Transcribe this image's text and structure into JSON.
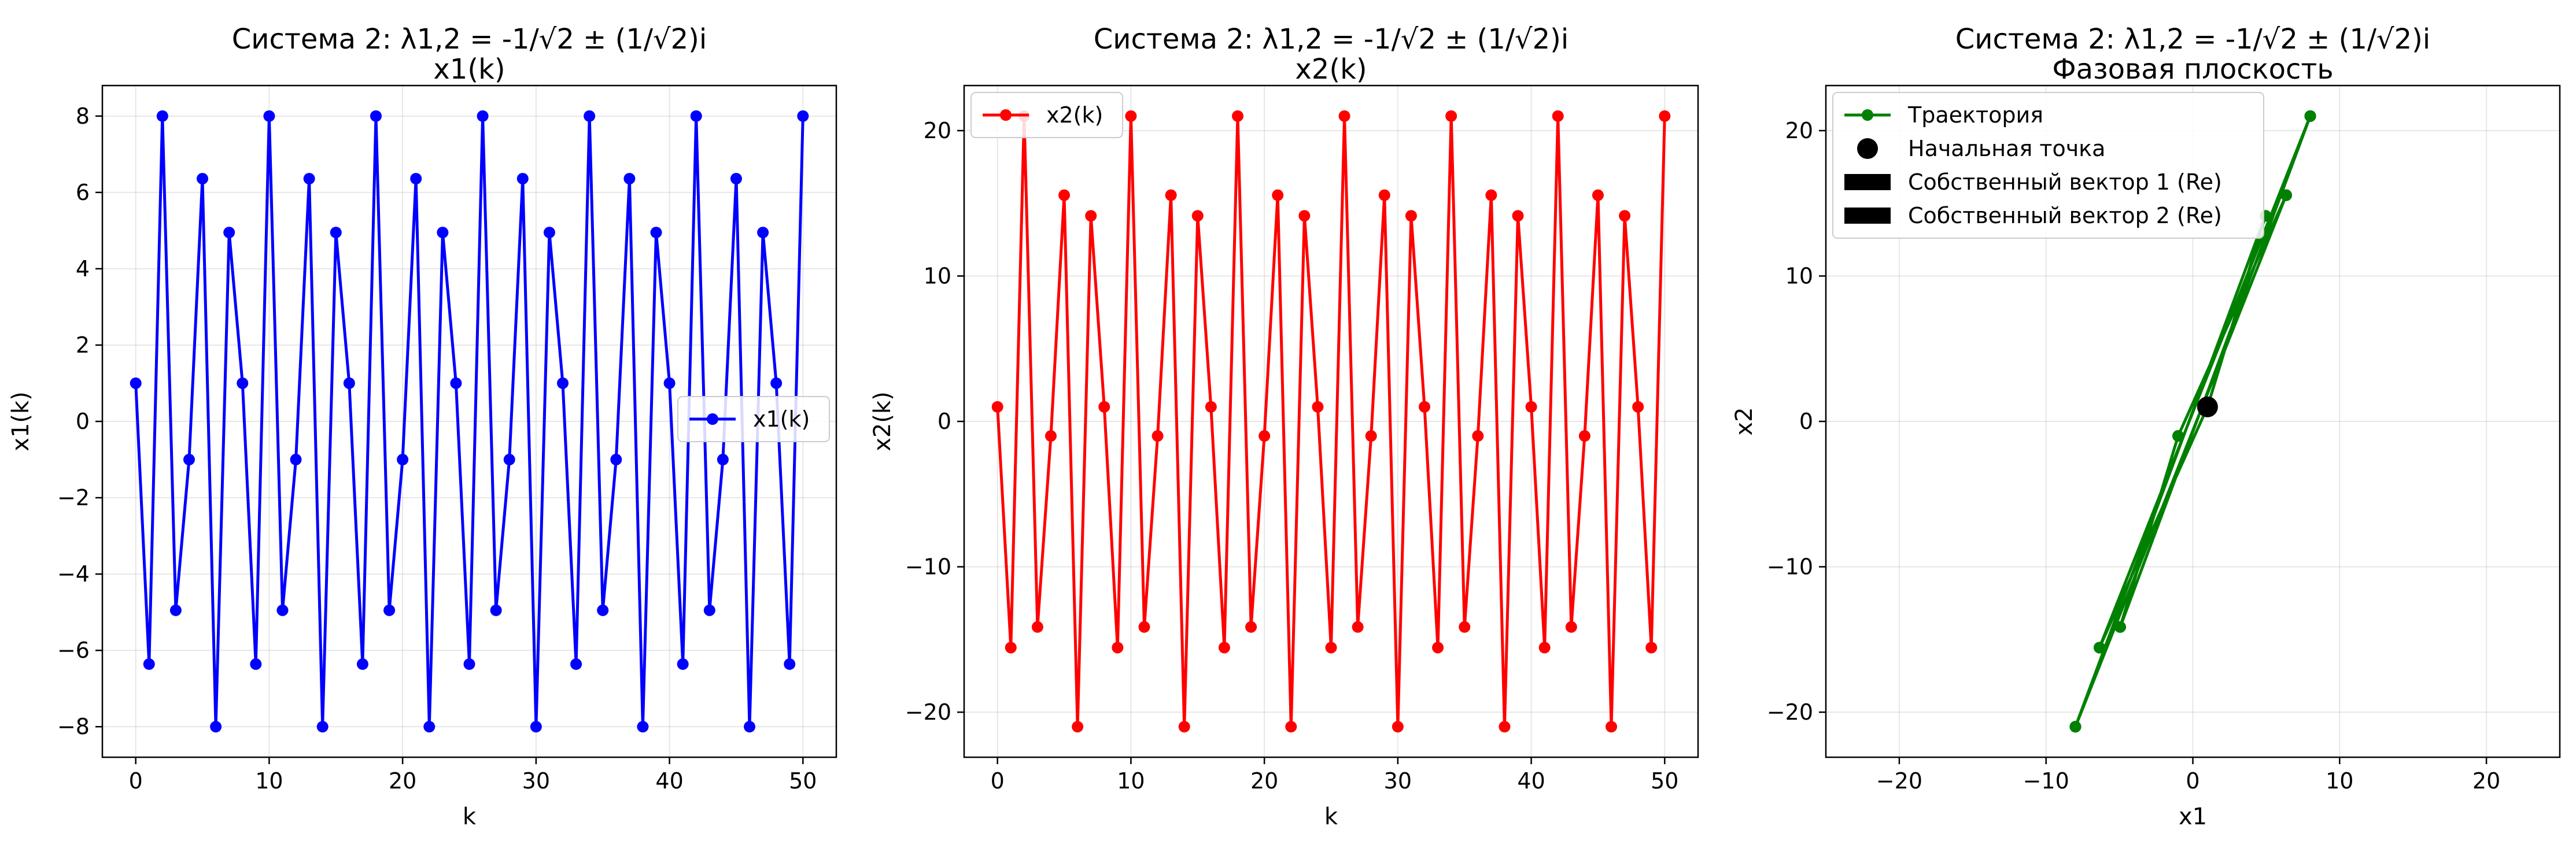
{
  "chart_data": [
    {
      "type": "line",
      "title": "Система 2: λ1,2 = -1/√2 ± (1/√2)i",
      "subtitle": "x1(k)",
      "xlabel": "k",
      "ylabel": "x1(k)",
      "xlim": [
        -2.5,
        52.5
      ],
      "ylim": [
        -8.8,
        8.8
      ],
      "xticks": [
        0,
        10,
        20,
        30,
        40,
        50
      ],
      "yticks": [
        -8,
        -6,
        -4,
        -2,
        0,
        2,
        4,
        6,
        8
      ],
      "grid": true,
      "legend_position": "center-right",
      "series": [
        {
          "name": "x1(k)",
          "color": "#0000ff",
          "marker": "circle",
          "x": [
            0,
            1,
            2,
            3,
            4,
            5,
            6,
            7,
            8,
            9,
            10,
            11,
            12,
            13,
            14,
            15,
            16,
            17,
            18,
            19,
            20,
            21,
            22,
            23,
            24,
            25,
            26,
            27,
            28,
            29,
            30,
            31,
            32,
            33,
            34,
            35,
            36,
            37,
            38,
            39,
            40,
            41,
            42,
            43,
            44,
            45,
            46,
            47,
            48,
            49,
            50
          ],
          "y": [
            1,
            -6.36,
            8,
            -4.95,
            -1,
            6.36,
            -8,
            4.95,
            1,
            -6.36,
            8,
            -4.95,
            -1,
            6.36,
            -8,
            4.95,
            1,
            -6.36,
            8,
            -4.95,
            -1,
            6.36,
            -8,
            4.95,
            1,
            -6.36,
            8,
            -4.95,
            -1,
            6.36,
            -8,
            4.95,
            1,
            -6.36,
            8,
            -4.95,
            -1,
            6.36,
            -8,
            4.95,
            1,
            -6.36,
            8,
            -4.95,
            -1,
            6.36,
            -8,
            4.95,
            1,
            -6.36,
            8
          ]
        }
      ]
    },
    {
      "type": "line",
      "title": "Система 2: λ1,2 = -1/√2 ± (1/√2)i",
      "subtitle": "x2(k)",
      "xlabel": "k",
      "ylabel": "x2(k)",
      "xlim": [
        -2.5,
        52.5
      ],
      "ylim": [
        -23.1,
        23.1
      ],
      "xticks": [
        0,
        10,
        20,
        30,
        40,
        50
      ],
      "yticks": [
        -20,
        -10,
        0,
        10,
        20
      ],
      "grid": true,
      "legend_position": "upper-left",
      "series": [
        {
          "name": "x2(k)",
          "color": "#ff0000",
          "marker": "circle",
          "x": [
            0,
            1,
            2,
            3,
            4,
            5,
            6,
            7,
            8,
            9,
            10,
            11,
            12,
            13,
            14,
            15,
            16,
            17,
            18,
            19,
            20,
            21,
            22,
            23,
            24,
            25,
            26,
            27,
            28,
            29,
            30,
            31,
            32,
            33,
            34,
            35,
            36,
            37,
            38,
            39,
            40,
            41,
            42,
            43,
            44,
            45,
            46,
            47,
            48,
            49,
            50
          ],
          "y": [
            1,
            -15.56,
            21,
            -14.14,
            -1,
            15.56,
            -21,
            14.14,
            1,
            -15.56,
            21,
            -14.14,
            -1,
            15.56,
            -21,
            14.14,
            1,
            -15.56,
            21,
            -14.14,
            -1,
            15.56,
            -21,
            14.14,
            1,
            -15.56,
            21,
            -14.14,
            -1,
            15.56,
            -21,
            14.14,
            1,
            -15.56,
            21,
            -14.14,
            -1,
            15.56,
            -21,
            14.14,
            1,
            -15.56,
            21,
            -14.14,
            -1,
            15.56,
            -21,
            14.14,
            1,
            -15.56,
            21
          ]
        }
      ]
    },
    {
      "type": "line",
      "title": "Система 2: λ1,2 = -1/√2 ± (1/√2)i",
      "subtitle": "Фазовая плоскость",
      "xlabel": "x1",
      "ylabel": "x2",
      "xlim": [
        -25,
        25
      ],
      "ylim": [
        -23.1,
        23.1
      ],
      "xticks": [
        -20,
        -10,
        0,
        10,
        20
      ],
      "yticks": [
        -20,
        -10,
        0,
        10,
        20
      ],
      "grid": true,
      "legend_position": "upper-left",
      "series": [
        {
          "name": "Траектория",
          "color": "#008000",
          "marker": "circle",
          "x": [
            1,
            -6.36,
            8,
            -4.95,
            -1,
            6.36,
            -8,
            4.95,
            1,
            -6.36,
            8,
            -4.95,
            -1,
            6.36,
            -8,
            4.95,
            1,
            -6.36,
            8,
            -4.95,
            -1,
            6.36,
            -8,
            4.95,
            1,
            -6.36,
            8,
            -4.95,
            -1,
            6.36,
            -8,
            4.95,
            1,
            -6.36,
            8,
            -4.95,
            -1,
            6.36,
            -8,
            4.95,
            1,
            -6.36,
            8,
            -4.95,
            -1,
            6.36,
            -8,
            4.95,
            1,
            -6.36,
            8
          ],
          "y": [
            1,
            -15.56,
            21,
            -14.14,
            -1,
            15.56,
            -21,
            14.14,
            1,
            -15.56,
            21,
            -14.14,
            -1,
            15.56,
            -21,
            14.14,
            1,
            -15.56,
            21,
            -14.14,
            -1,
            15.56,
            -21,
            14.14,
            1,
            -15.56,
            21,
            -14.14,
            -1,
            15.56,
            -21,
            14.14,
            1,
            -15.56,
            21,
            -14.14,
            -1,
            15.56,
            -21,
            14.14,
            1,
            -15.56,
            21,
            -14.14,
            -1,
            15.56,
            -21,
            14.14,
            1,
            -15.56,
            21
          ]
        }
      ],
      "start_point": {
        "name": "Начальная точка",
        "x": 1,
        "y": 1,
        "color": "#000000"
      },
      "eigenvector_legend": [
        {
          "name": "Собственный вектор 1 (Re)",
          "color": "#000000"
        },
        {
          "name": "Собственный вектор 2 (Re)",
          "color": "#000000"
        }
      ]
    }
  ]
}
